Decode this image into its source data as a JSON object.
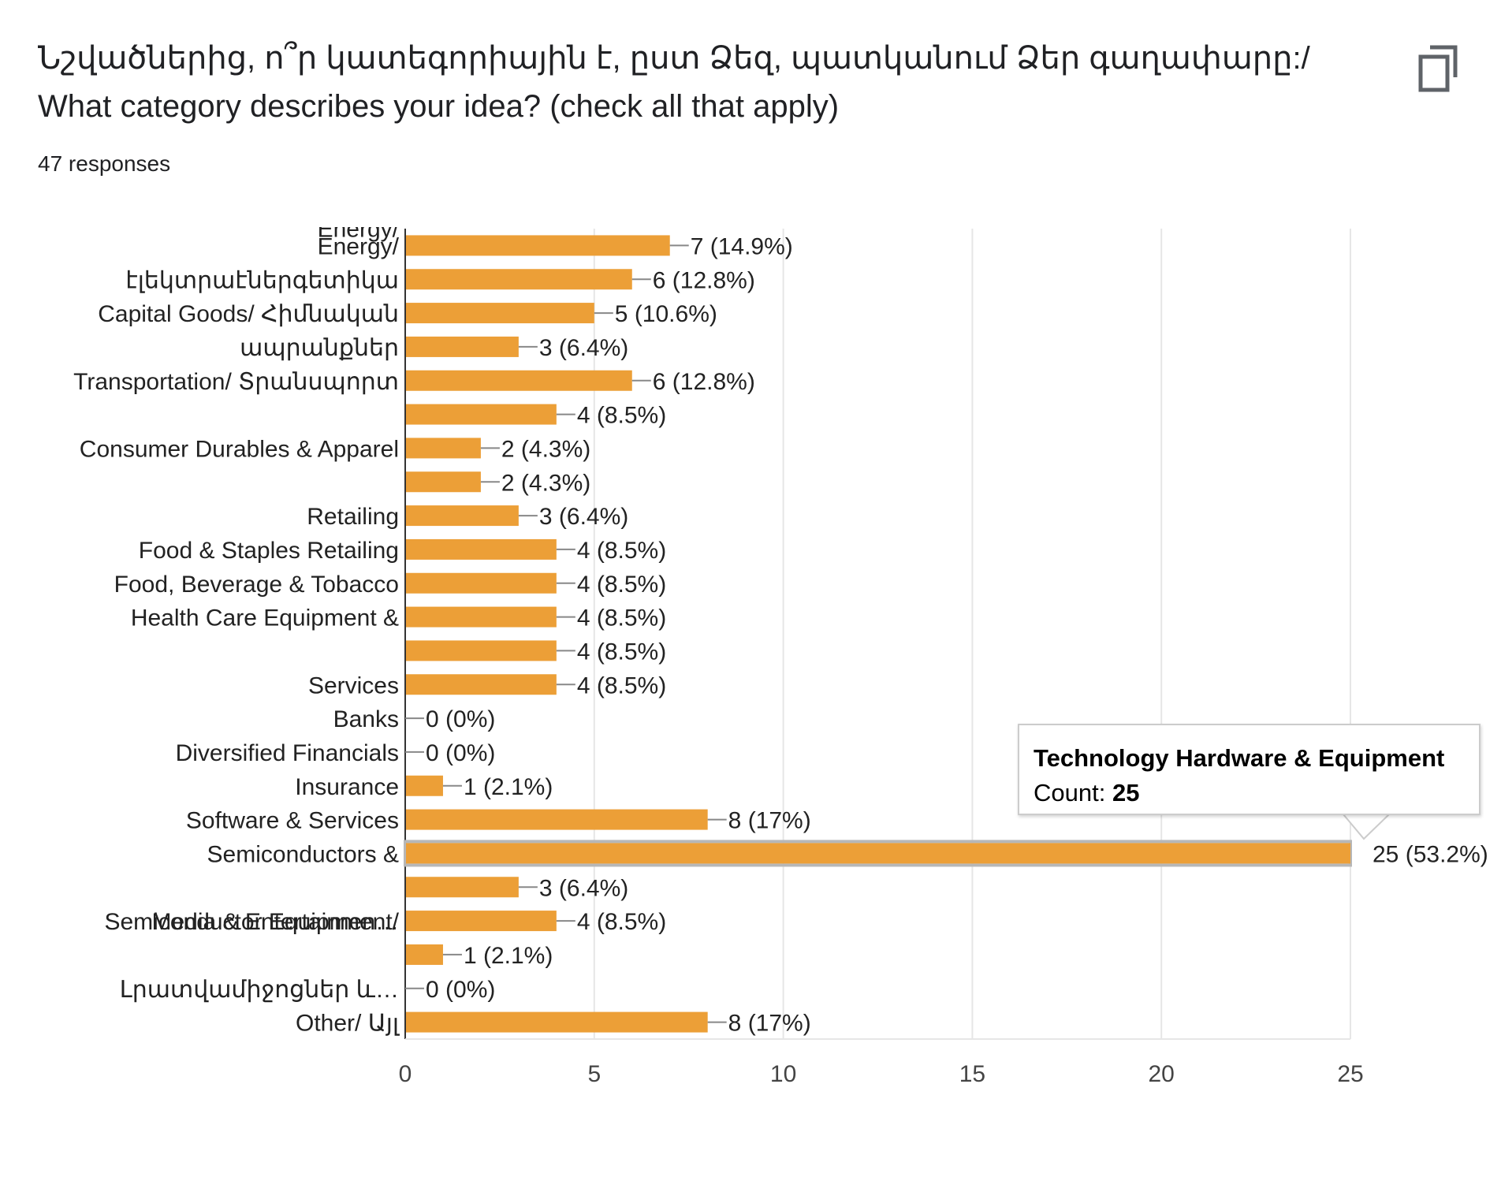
{
  "header": {
    "title": "Նշվածներից, ո՞ր կատեգորիային է, ըստ Ձեզ, պատկանում Ձեր գաղափարը:/ What category describes your idea? (check all that apply)",
    "responses": "47 responses",
    "copy_icon": "copy-icon"
  },
  "colors": {
    "bar": "#ec9f37",
    "bar_highlight_border": "#b7b7b7",
    "grid": "#e6e6e6",
    "axis": "#333333",
    "label_line": "#888888"
  },
  "tooltip": {
    "title": "Technology Hardware & Equipment",
    "count_label": "Count: ",
    "count_value": "25"
  },
  "chart_data": {
    "type": "bar",
    "orientation": "horizontal",
    "xlim": [
      0,
      25
    ],
    "xticks": [
      0,
      5,
      10,
      15,
      20,
      25
    ],
    "grid": true,
    "highlight_index": 18,
    "category_labels": [
      {
        "lines": [
          "Energy/",
          "էլեկտրաէներգետիկա"
        ],
        "rows": [
          0,
          1
        ]
      },
      {
        "lines": [
          "Capital Goods/ Հիմնական",
          "ապրանքներ"
        ],
        "rows": [
          2,
          3
        ]
      },
      {
        "lines": [
          "Transportation/ Տրանսպորտ"
        ],
        "rows": [
          4,
          4
        ]
      },
      {
        "lines": [
          "Consumer Durables & Apparel"
        ],
        "rows": [
          6,
          6
        ]
      },
      {
        "lines": [
          "Retailing"
        ],
        "rows": [
          8,
          8
        ]
      },
      {
        "lines": [
          "Food & Staples Retailing"
        ],
        "rows": [
          9,
          9
        ]
      },
      {
        "lines": [
          "Food, Beverage & Tobacco"
        ],
        "rows": [
          10,
          10
        ]
      },
      {
        "lines": [
          "Health Care Equipment &",
          "Services"
        ],
        "rows": [
          11,
          13
        ]
      },
      {
        "lines": [
          "Banks"
        ],
        "rows": [
          14,
          14
        ]
      },
      {
        "lines": [
          "Diversified Financials"
        ],
        "rows": [
          15,
          15
        ]
      },
      {
        "lines": [
          "Insurance"
        ],
        "rows": [
          16,
          16
        ]
      },
      {
        "lines": [
          "Software & Services"
        ],
        "rows": [
          17,
          17
        ]
      },
      {
        "lines": [
          "Semiconductors &",
          "Semiconductor Equipmen…"
        ],
        "rows": [
          18,
          20
        ]
      },
      {
        "lines": [
          "Media & Entertainment/",
          "Լրատվամիջոցներ և…"
        ],
        "rows": [
          20,
          22
        ]
      },
      {
        "lines": [
          "Other/ Այլ"
        ],
        "rows": [
          23,
          23
        ]
      }
    ],
    "values": [
      7,
      6,
      5,
      3,
      6,
      4,
      2,
      2,
      3,
      4,
      4,
      4,
      4,
      4,
      0,
      0,
      1,
      8,
      25,
      3,
      4,
      1,
      0,
      8
    ],
    "data_labels": [
      "7 (14.9%)",
      "6 (12.8%)",
      "5 (10.6%)",
      "3 (6.4%)",
      "6 (12.8%)",
      "4 (8.5%)",
      "2 (4.3%)",
      "2 (4.3%)",
      "3 (6.4%)",
      "4 (8.5%)",
      "4 (8.5%)",
      "4 (8.5%)",
      "4 (8.5%)",
      "4 (8.5%)",
      "0 (0%)",
      "0 (0%)",
      "1 (2.1%)",
      "8 (17%)",
      "25 (53.2%)",
      "3 (6.4%)",
      "4 (8.5%)",
      "1 (2.1%)",
      "0 (0%)",
      "8 (17%)"
    ]
  }
}
